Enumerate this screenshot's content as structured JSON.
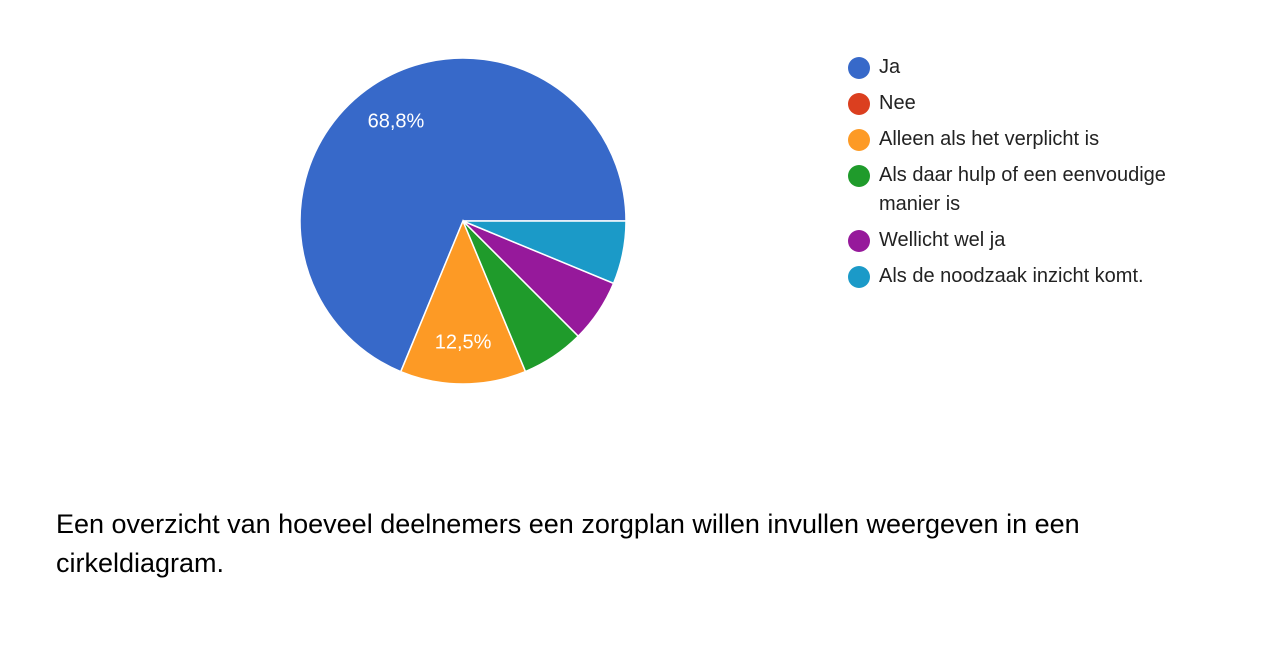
{
  "chart_data": {
    "type": "pie",
    "categories": [
      "Ja",
      "Nee",
      "Alleen als het verplicht is",
      "Als daar hulp of een eenvoudige manier is",
      "Wellicht wel ja",
      "Als de noodzaak inzicht komt."
    ],
    "values": [
      68.8,
      0,
      12.5,
      6.25,
      6.25,
      6.25
    ],
    "data_labels": [
      "68,8%",
      "",
      "12,5%",
      "",
      "",
      ""
    ],
    "colors": [
      "#3769c9",
      "#db3f1f",
      "#fd9a25",
      "#1f9b2b",
      "#96199b",
      "#1b9ac8"
    ],
    "legend_position": "right"
  },
  "caption": "Een overzicht van hoeveel deelnemers een zorgplan willen invullen weergeven in een cirkeldiagram."
}
